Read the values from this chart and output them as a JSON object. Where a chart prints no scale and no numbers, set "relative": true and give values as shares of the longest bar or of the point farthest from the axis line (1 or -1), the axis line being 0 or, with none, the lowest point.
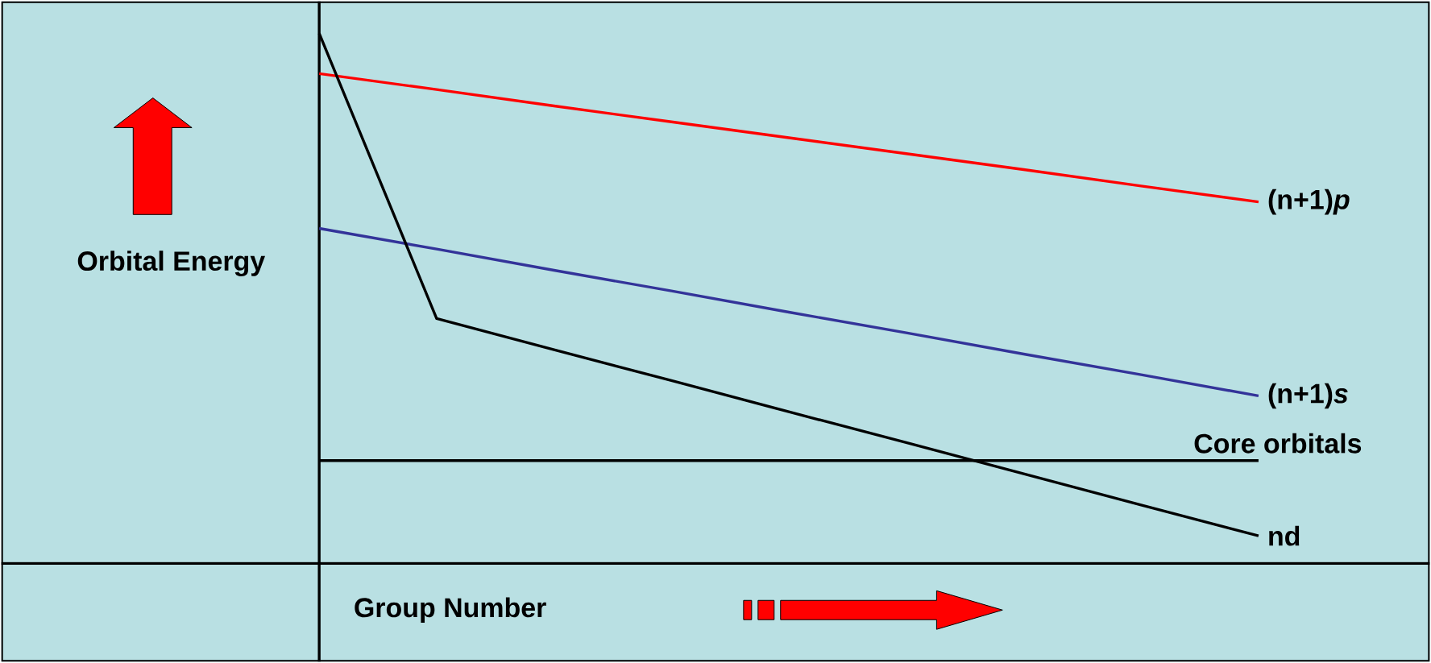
{
  "chart_data": {
    "type": "line",
    "relative": true,
    "xlabel": "Group Number",
    "ylabel": "Orbital Energy",
    "marker": "none",
    "line_style": "solid",
    "grid": false,
    "categories": [
      null,
      null,
      null,
      null,
      null,
      null,
      null,
      null,
      null
    ],
    "series": [
      {
        "name": "(n+1)*p*",
        "color": "#ff0000",
        "values": [
          0.924,
          0.894,
          0.863,
          0.833,
          0.803,
          0.773,
          0.743,
          0.712,
          0.682
        ]
      },
      {
        "name": "(n+1)*s*",
        "color": "#333399",
        "values": [
          0.632,
          0.593,
          0.553,
          0.514,
          0.474,
          0.435,
          0.395,
          0.356,
          0.316
        ]
      },
      {
        "name": "Core  orbitals",
        "color": "#000000",
        "values": [
          0.194,
          0.194,
          0.194,
          0.194,
          0.194,
          0.194,
          0.194,
          0.194,
          0.194
        ]
      },
      {
        "name": "nd",
        "color": "#000000",
        "values": [
          1.0,
          0.462,
          0.403,
          0.345,
          0.286,
          0.228,
          0.169,
          0.11,
          0.052
        ]
      }
    ]
  }
}
